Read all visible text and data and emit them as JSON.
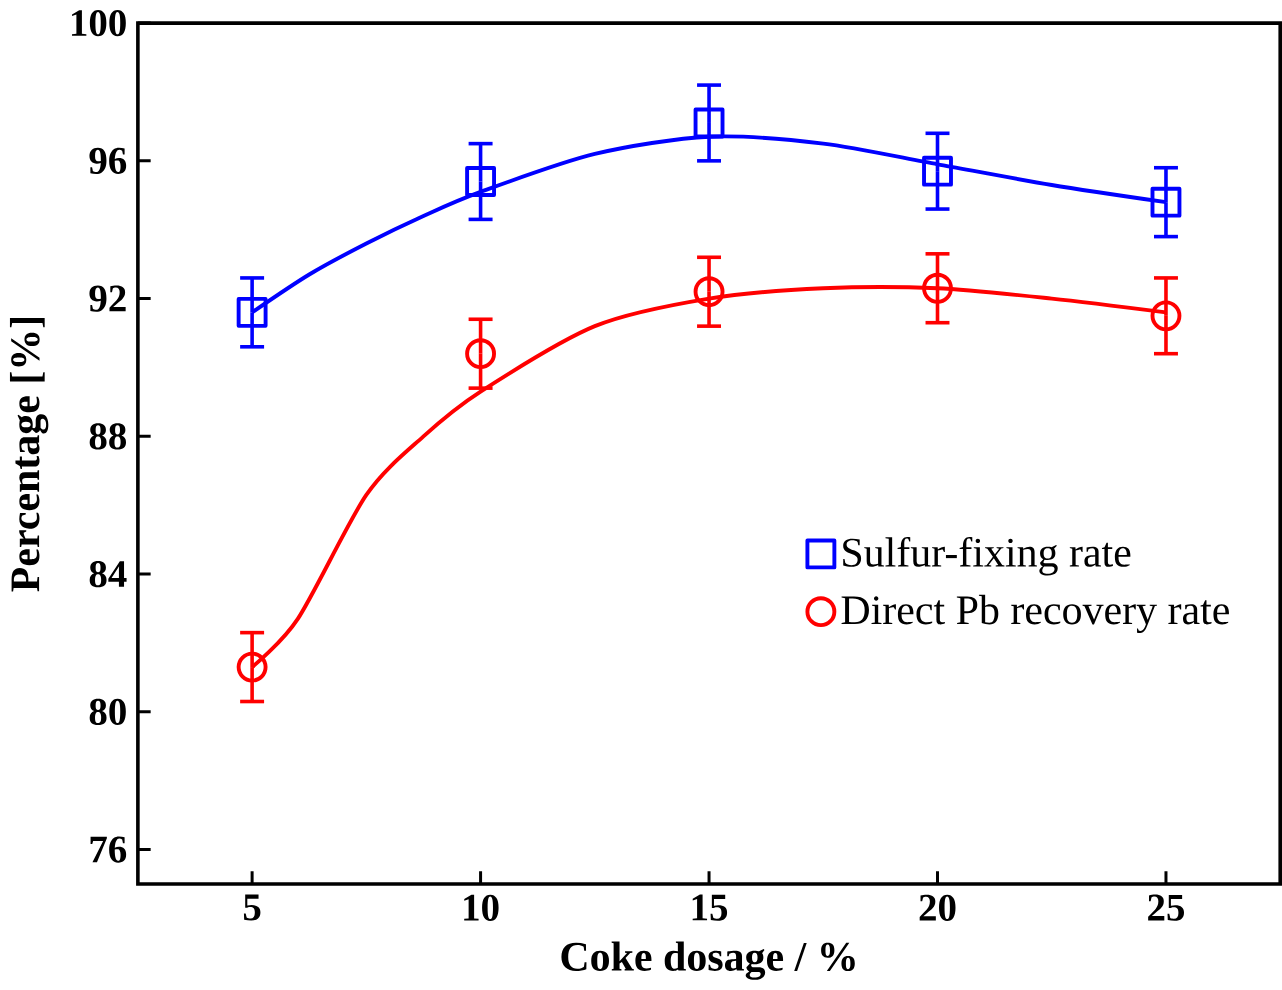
{
  "chart_data": {
    "type": "scatter",
    "xlabel": "Coke dosage / %",
    "ylabel": "Percentage [%]",
    "xlim": [
      2.5,
      27.5
    ],
    "ylim": [
      75,
      100
    ],
    "xticks": [
      5,
      10,
      15,
      20,
      25
    ],
    "yticks": [
      76,
      80,
      84,
      88,
      92,
      96,
      100
    ],
    "legend": "right",
    "grid": false,
    "series": [
      {
        "name": "Sulfur-fixing rate",
        "color": "#0000ff",
        "marker": "square",
        "x": [
          5,
          10,
          15,
          20,
          25
        ],
        "values": [
          91.6,
          95.4,
          97.1,
          95.7,
          94.8
        ],
        "errors": [
          1.0,
          1.1,
          1.1,
          1.1,
          1.0
        ]
      },
      {
        "name": "Direct Pb recovery rate",
        "color": "#ff0000",
        "marker": "circle",
        "x": [
          5,
          10,
          15,
          20,
          25
        ],
        "values": [
          81.3,
          90.4,
          92.2,
          92.3,
          91.5
        ],
        "errors": [
          1.0,
          1.0,
          1.0,
          1.0,
          1.1
        ]
      },
      {
        "type": "line",
        "color": "#0000ff",
        "marker": "none",
        "x": [
          5,
          6.25,
          7.5,
          8.75,
          10,
          12.5,
          15,
          17.5,
          20,
          22.5,
          25
        ],
        "values": [
          91.6,
          92.7,
          93.6,
          94.4,
          95.1,
          96.2,
          96.7,
          96.5,
          95.9,
          95.3,
          94.8
        ]
      },
      {
        "type": "line",
        "color": "#ff0000",
        "marker": "none",
        "x": [
          5,
          6,
          7.5,
          8.75,
          10,
          12.5,
          15,
          17.5,
          20,
          22.5,
          25
        ],
        "values": [
          81.3,
          82.7,
          86.3,
          88.0,
          89.3,
          91.2,
          92.0,
          92.3,
          92.3,
          92.0,
          91.6
        ]
      }
    ]
  }
}
